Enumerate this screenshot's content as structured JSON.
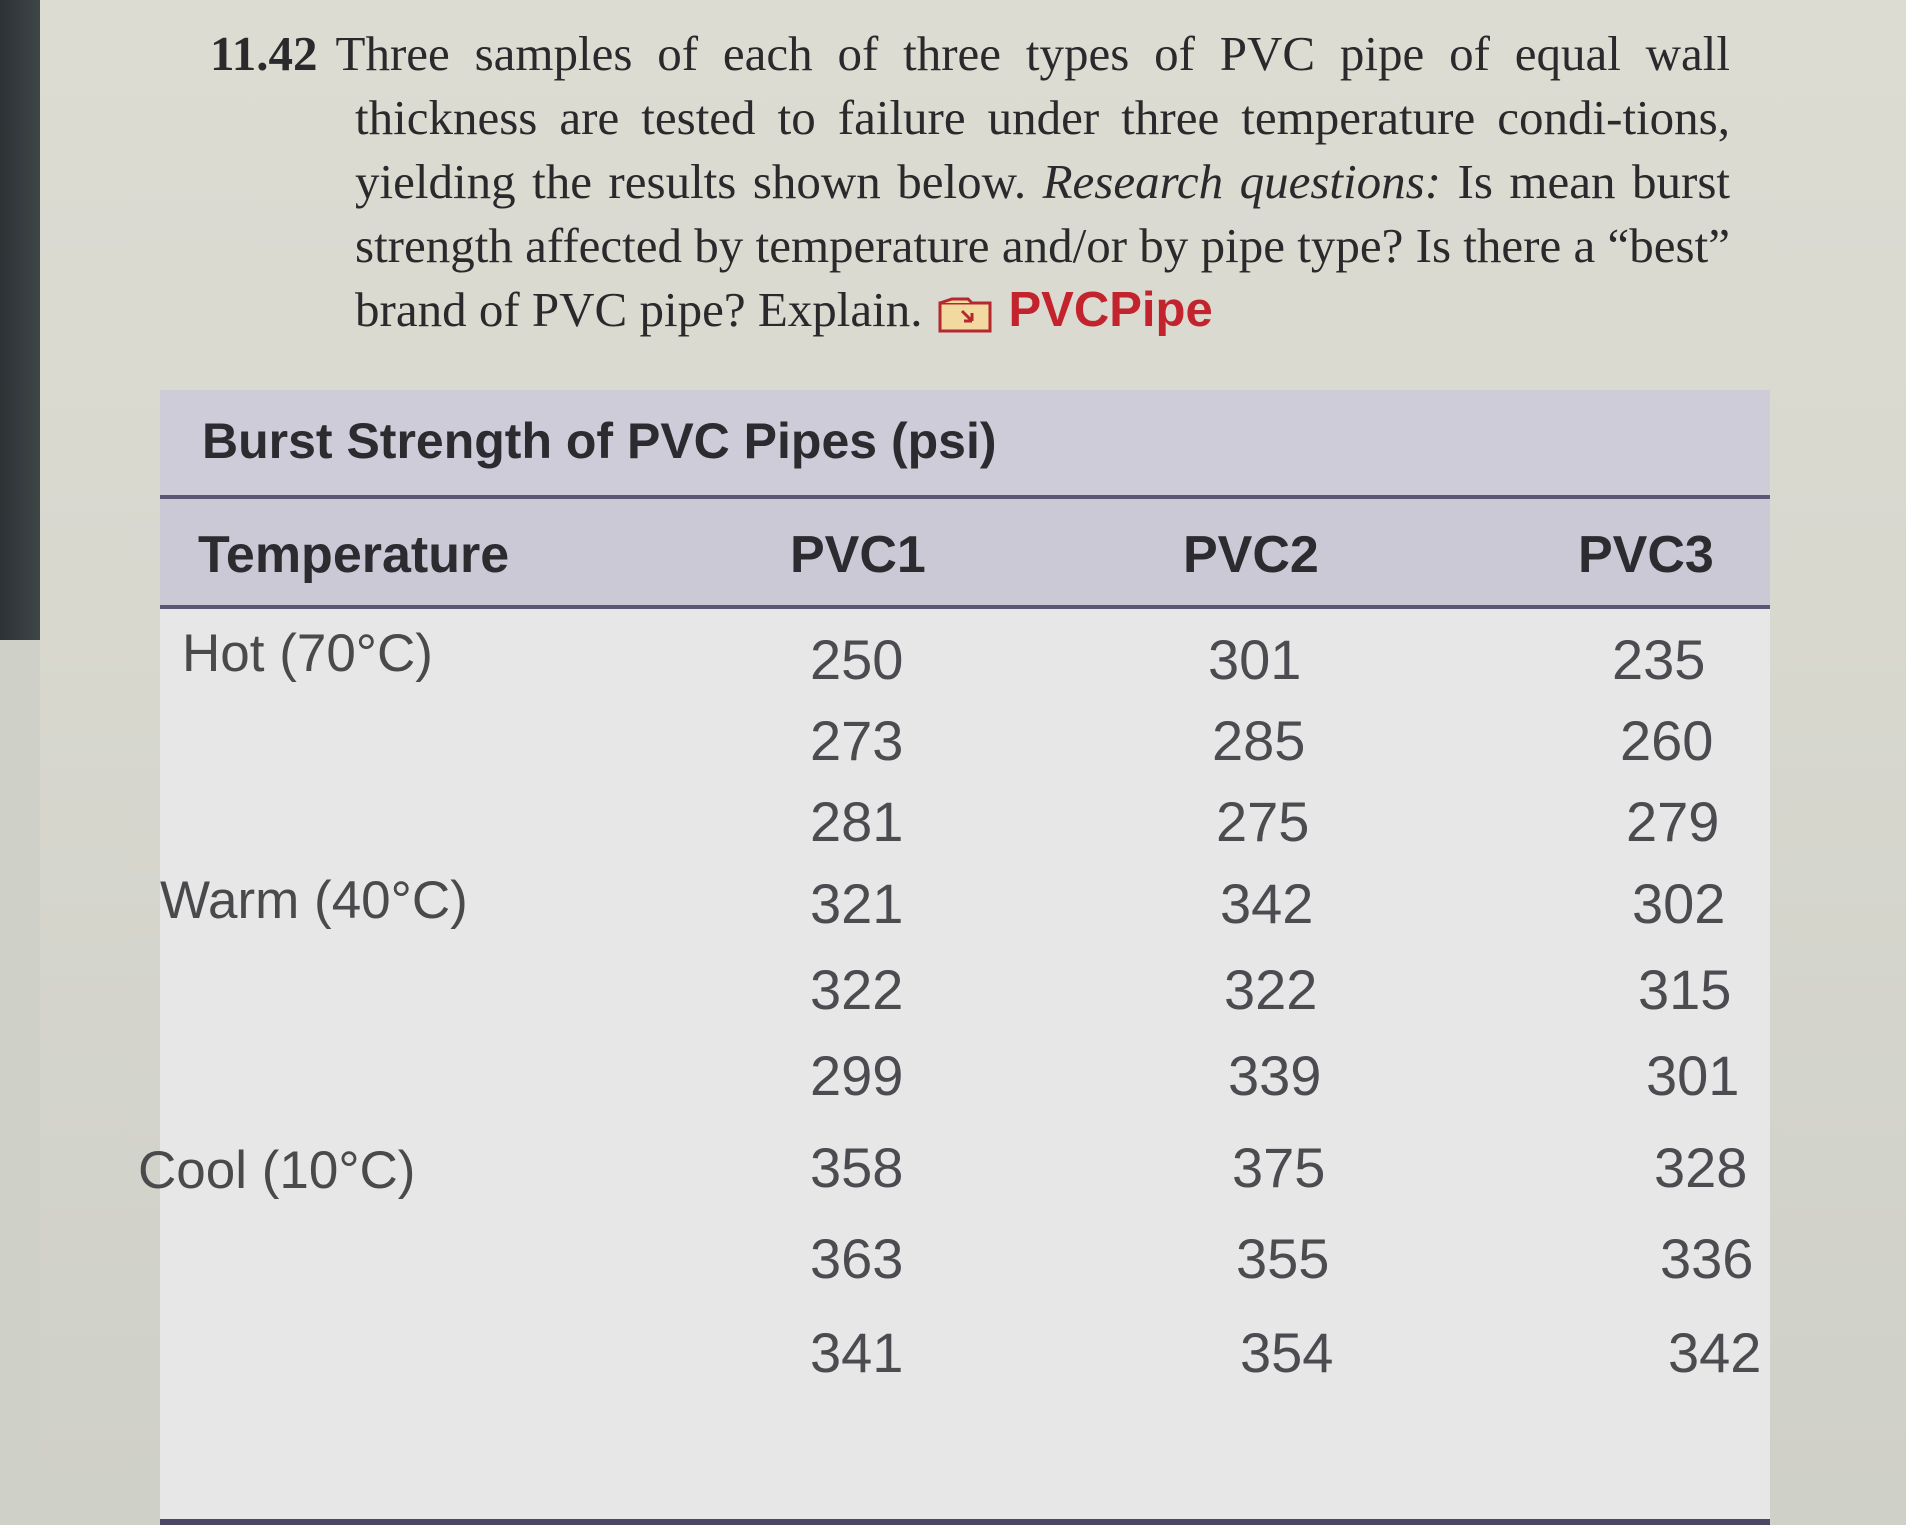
{
  "problem": {
    "number": "11.42",
    "text_before": "Three samples of each of three types of PVC pipe of equal wall thickness are tested to failure under three temperature condi-tions, yielding the results shown below.",
    "research_label": "Research questions:",
    "text_after": "Is mean burst strength affected by temperature and/or by pipe type? Is there a “best” brand of PVC pipe? Explain.",
    "file_icon": "data-file-icon",
    "file_name": "PVCPipe",
    "accent_color": "#c3232c"
  },
  "table": {
    "title": "Burst Strength of PVC Pipes (psi)",
    "headers": [
      "Temperature",
      "PVC1",
      "PVC2",
      "PVC3"
    ],
    "row_labels": [
      "Hot (70°C)",
      "Warm (40°C)",
      "Cool (10°C)"
    ],
    "rows": [
      [
        "250",
        "301",
        "235"
      ],
      [
        "273",
        "285",
        "260"
      ],
      [
        "281",
        "275",
        "279"
      ],
      [
        "321",
        "342",
        "302"
      ],
      [
        "322",
        "322",
        "315"
      ],
      [
        "299",
        "339",
        "301"
      ],
      [
        "358",
        "375",
        "328"
      ],
      [
        "363",
        "355",
        "336"
      ],
      [
        "341",
        "354",
        "342"
      ]
    ],
    "header_color": "#cbc9d6",
    "rule_color": "#5b5576"
  }
}
